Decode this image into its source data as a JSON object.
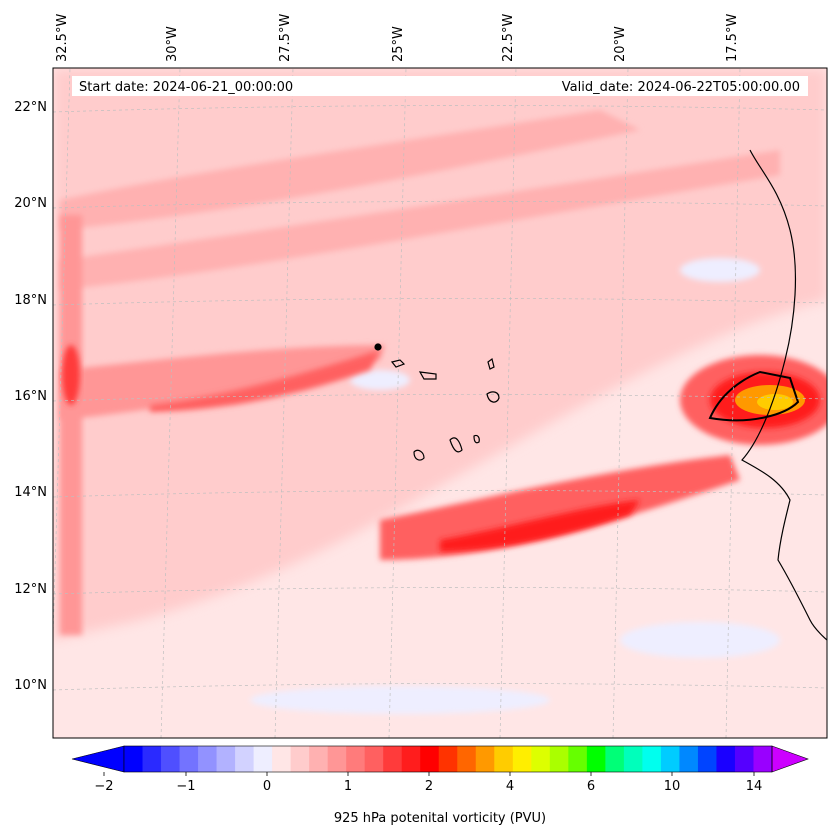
{
  "header": {
    "start_date": "Start date: 2024-06-21_00:00:00",
    "valid_date": "Valid_date: 2024-06-22T05:00:00.00"
  },
  "map": {
    "lon_labels": [
      "32.5°W",
      "30°W",
      "27.5°W",
      "25°W",
      "22.5°W",
      "20°W",
      "17.5°W"
    ],
    "lat_labels": [
      "22°N",
      "20°N",
      "18°N",
      "16°N",
      "14°N",
      "12°N",
      "10°N"
    ],
    "gridlines": true
  },
  "colorbar": {
    "label": "925 hPa potenital vorticity (PVU)",
    "tick_labels": [
      "−2",
      "−1",
      "0",
      "1",
      "2",
      "4",
      "6",
      "10",
      "14"
    ],
    "extend": "both",
    "colors": [
      "#0000ff",
      "#2a2aff",
      "#4f4fff",
      "#7373ff",
      "#9292ff",
      "#b2b2ff",
      "#d2d2ff",
      "#eeeeff",
      "#ffe6e6",
      "#ffcccc",
      "#ffb1b1",
      "#ff9696",
      "#ff7b7b",
      "#ff6060",
      "#ff3b3b",
      "#ff1d1d",
      "#ff0000",
      "#ff3300",
      "#ff6600",
      "#ff9900",
      "#ffcc00",
      "#ffee00",
      "#ddff00",
      "#aaff00",
      "#66ff00",
      "#00ff00",
      "#00ff77",
      "#00ffbb",
      "#00ffee",
      "#00ccff",
      "#0088ff",
      "#0044ff",
      "#1a00ff",
      "#5500ff",
      "#9900ff"
    ],
    "under_color": "#0000ff",
    "over_color": "#cc00ff"
  }
}
